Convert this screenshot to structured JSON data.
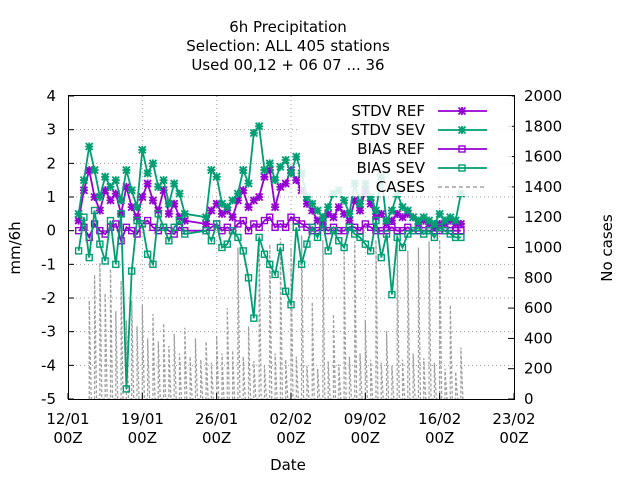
{
  "chart_data": {
    "type": "line",
    "title": [
      "6h Precipitation",
      "Selection: ALL    405 stations",
      "Used  00,12  + 06 07 ... 36"
    ],
    "xlabel": "Date",
    "ylabel": "mm/6h",
    "y2label": "No cases",
    "xlim": [
      0,
      42
    ],
    "ylim": [
      -5,
      4
    ],
    "y2lim": [
      0,
      2000
    ],
    "x_ticks": [
      {
        "value": 0,
        "line1": "12/01",
        "line2": "00Z"
      },
      {
        "value": 7,
        "line1": "19/01",
        "line2": "00Z"
      },
      {
        "value": 14,
        "line1": "26/01",
        "line2": "00Z"
      },
      {
        "value": 21,
        "line1": "02/02",
        "line2": "00Z"
      },
      {
        "value": 28,
        "line1": "09/02",
        "line2": "00Z"
      },
      {
        "value": 35,
        "line1": "16/02",
        "line2": "00Z"
      },
      {
        "value": 42,
        "line1": "23/02",
        "line2": "00Z"
      }
    ],
    "y_ticks": [
      "-5",
      "-4",
      "-3",
      "-2",
      "-1",
      "0",
      "1",
      "2",
      "3",
      "4"
    ],
    "y2_ticks": [
      "0",
      "200",
      "400",
      "600",
      "800",
      "1000",
      "1200",
      "1400",
      "1600",
      "1800",
      "2000"
    ],
    "grid": true,
    "legend_position": "top-right",
    "series": [
      {
        "name": "STDV REF",
        "color": "#9400d3",
        "marker": "x-star",
        "axis": "y1",
        "x": [
          1.0,
          1.5,
          2.0,
          2.5,
          3.0,
          3.5,
          4.0,
          4.5,
          5.0,
          5.5,
          6.0,
          6.5,
          7.0,
          7.5,
          8.0,
          8.5,
          9.0,
          9.5,
          10.0,
          10.5,
          11.0,
          13.0,
          13.5,
          14.0,
          14.5,
          15.0,
          15.5,
          16.0,
          16.5,
          17.0,
          17.5,
          18.0,
          18.5,
          19.0,
          19.5,
          20.0,
          20.5,
          21.0,
          21.5,
          22.0,
          22.5,
          23.0,
          23.5,
          24.0,
          24.5,
          25.0,
          25.5,
          26.0,
          26.5,
          27.0,
          27.5,
          28.0,
          28.5,
          29.0,
          29.5,
          30.0,
          30.5,
          31.0,
          31.5,
          32.0,
          32.5,
          33.0,
          33.5,
          34.0,
          34.5,
          35.0,
          35.5,
          36.0,
          36.5,
          37.0
        ],
        "y": [
          0.3,
          1.2,
          1.8,
          1.0,
          0.6,
          1.2,
          0.9,
          1.1,
          0.5,
          1.3,
          0.7,
          0.4,
          1.0,
          1.4,
          0.9,
          0.6,
          1.2,
          0.5,
          0.8,
          0.4,
          0.3,
          0.2,
          0.6,
          0.8,
          0.5,
          0.6,
          0.4,
          0.9,
          1.2,
          0.7,
          0.9,
          1.0,
          1.6,
          1.8,
          0.7,
          1.3,
          1.4,
          1.8,
          1.5,
          1.2,
          0.8,
          0.6,
          0.3,
          0.2,
          0.5,
          0.4,
          0.7,
          0.5,
          0.3,
          0.9,
          0.6,
          1.2,
          0.8,
          0.4,
          0.5,
          0.2,
          0.3,
          0.5,
          0.4,
          0.5,
          0.4,
          0.2,
          0.3,
          0.2,
          0.1,
          0.2,
          0.2,
          0.3,
          0.2,
          0.2
        ]
      },
      {
        "name": "STDV SEV",
        "color": "#009e73",
        "marker": "x-star",
        "axis": "y1",
        "x": [
          1.0,
          1.5,
          2.0,
          2.5,
          3.0,
          3.5,
          4.0,
          4.5,
          5.0,
          5.5,
          6.0,
          6.5,
          7.0,
          7.5,
          8.0,
          8.5,
          9.0,
          9.5,
          10.0,
          10.5,
          11.0,
          13.0,
          13.5,
          14.0,
          14.5,
          15.0,
          15.5,
          16.0,
          16.5,
          17.0,
          17.5,
          18.0,
          18.5,
          19.0,
          19.5,
          20.0,
          20.5,
          21.0,
          21.5,
          22.0,
          22.5,
          23.0,
          23.5,
          24.0,
          24.5,
          25.0,
          25.5,
          26.0,
          26.5,
          27.0,
          27.5,
          28.0,
          28.5,
          29.0,
          29.5,
          30.0,
          30.5,
          31.0,
          31.5,
          32.0,
          32.5,
          33.0,
          33.5,
          34.0,
          34.5,
          35.0,
          35.5,
          36.0,
          36.5,
          37.0
        ],
        "y": [
          0.5,
          1.5,
          2.5,
          1.8,
          1.0,
          1.6,
          1.3,
          1.5,
          0.9,
          1.8,
          1.2,
          0.7,
          2.4,
          1.7,
          2.0,
          1.3,
          1.5,
          0.8,
          1.4,
          1.1,
          0.5,
          0.4,
          1.8,
          1.6,
          0.8,
          0.7,
          0.9,
          1.1,
          1.8,
          1.4,
          2.9,
          3.1,
          1.8,
          2.0,
          1.5,
          1.9,
          2.1,
          1.7,
          2.2,
          1.7,
          1.0,
          0.8,
          0.6,
          0.4,
          0.7,
          1.1,
          1.2,
          0.9,
          0.5,
          1.4,
          0.8,
          1.4,
          1.0,
          0.6,
          1.6,
          0.3,
          0.6,
          1.1,
          0.7,
          0.6,
          0.4,
          0.3,
          0.4,
          0.3,
          0.2,
          0.5,
          0.3,
          0.4,
          0.3,
          1.1
        ]
      },
      {
        "name": "BIAS REF",
        "color": "#9400d3",
        "marker": "open-square",
        "axis": "y1",
        "x": [
          1.0,
          1.5,
          2.0,
          2.5,
          3.0,
          3.5,
          4.0,
          4.5,
          5.0,
          5.5,
          6.0,
          6.5,
          7.0,
          7.5,
          8.0,
          8.5,
          9.0,
          9.5,
          10.0,
          10.5,
          11.0,
          13.0,
          13.5,
          14.0,
          14.5,
          15.0,
          15.5,
          16.0,
          16.5,
          17.0,
          17.5,
          18.0,
          18.5,
          19.0,
          19.5,
          20.0,
          20.5,
          21.0,
          21.5,
          22.0,
          22.5,
          23.0,
          23.5,
          24.0,
          24.5,
          25.0,
          25.5,
          26.0,
          26.5,
          27.0,
          27.5,
          28.0,
          28.5,
          29.0,
          29.5,
          30.0,
          30.5,
          31.0,
          31.5,
          32.0,
          32.5,
          33.0,
          33.5,
          34.0,
          34.5,
          35.0,
          35.5,
          36.0,
          36.5,
          37.0
        ],
        "y": [
          0.0,
          0.1,
          -0.2,
          0.2,
          0.0,
          -0.1,
          0.1,
          0.2,
          -0.3,
          0.1,
          0.0,
          -0.1,
          0.2,
          0.3,
          0.1,
          0.0,
          0.1,
          0.0,
          -0.1,
          0.1,
          0.0,
          0.0,
          0.1,
          0.2,
          0.0,
          0.1,
          0.0,
          0.2,
          0.3,
          0.0,
          0.2,
          0.1,
          0.3,
          0.4,
          0.1,
          0.2,
          0.1,
          0.4,
          0.3,
          0.2,
          0.1,
          0.0,
          0.0,
          0.1,
          0.0,
          0.1,
          0.0,
          0.0,
          0.1,
          0.1,
          0.0,
          0.2,
          0.1,
          0.0,
          0.0,
          0.0,
          0.1,
          0.0,
          0.0,
          0.1,
          0.0,
          0.0,
          0.0,
          0.0,
          0.0,
          0.0,
          0.0,
          0.0,
          0.0,
          0.0
        ]
      },
      {
        "name": "BIAS SEV",
        "color": "#009e73",
        "marker": "open-square",
        "axis": "y1",
        "x": [
          1.0,
          1.5,
          2.0,
          2.5,
          3.0,
          3.5,
          4.0,
          4.5,
          5.0,
          5.5,
          6.0,
          6.5,
          7.0,
          7.5,
          8.0,
          8.5,
          9.0,
          9.5,
          10.0,
          10.5,
          11.0,
          13.0,
          13.5,
          14.0,
          14.5,
          15.0,
          15.5,
          16.0,
          16.5,
          17.0,
          17.5,
          18.0,
          18.5,
          19.0,
          19.5,
          20.0,
          20.5,
          21.0,
          21.5,
          22.0,
          22.5,
          23.0,
          23.5,
          24.0,
          24.5,
          25.0,
          25.5,
          26.0,
          26.5,
          27.0,
          27.5,
          28.0,
          28.5,
          29.0,
          29.5,
          30.0,
          30.5,
          31.0,
          31.5,
          32.0,
          32.5,
          33.0,
          33.5,
          34.0,
          34.5,
          35.0,
          35.5,
          36.0,
          36.5,
          37.0
        ],
        "y": [
          -0.6,
          0.4,
          -0.8,
          0.6,
          -0.4,
          -0.9,
          0.3,
          -1.0,
          0.5,
          -4.7,
          -1.2,
          0.3,
          0.2,
          -0.7,
          -1.0,
          0.5,
          0.1,
          -0.3,
          0.1,
          0.3,
          -0.1,
          0.0,
          -0.3,
          0.2,
          -0.5,
          -0.4,
          0.0,
          -0.2,
          -0.6,
          -1.4,
          -2.6,
          -0.2,
          -0.7,
          -1.0,
          -1.3,
          -0.5,
          -1.8,
          -2.2,
          0.1,
          -1.0,
          -0.4,
          0.1,
          -0.2,
          0.2,
          -0.6,
          0.0,
          -0.3,
          -0.5,
          0.1,
          -0.1,
          -0.2,
          -0.4,
          -0.6,
          0.3,
          -0.8,
          -0.1,
          -1.9,
          -0.2,
          -0.5,
          -0.1,
          0.0,
          0.1,
          -0.1,
          0.0,
          -0.2,
          0.1,
          0.0,
          -0.1,
          -0.2,
          -0.2
        ]
      },
      {
        "name": "CASES",
        "color": "#a0a0a0",
        "style": "dashed",
        "axis": "y2",
        "x": [
          2.0,
          2.5,
          3.0,
          3.5,
          4.0,
          4.5,
          5.0,
          5.5,
          6.0,
          6.5,
          7.0,
          7.5,
          8.0,
          8.5,
          9.0,
          9.5,
          10.0,
          10.5,
          11.0,
          11.5,
          12.0,
          12.5,
          13.0,
          13.5,
          14.0,
          14.5,
          15.0,
          15.5,
          16.0,
          16.5,
          17.0,
          17.5,
          18.0,
          18.5,
          19.0,
          19.5,
          20.0,
          20.5,
          21.0,
          21.5,
          22.0,
          22.5,
          23.0,
          23.5,
          24.0,
          24.5,
          25.0,
          25.5,
          26.0,
          26.5,
          27.0,
          27.5,
          28.0,
          28.5,
          29.0,
          29.5,
          30.0,
          30.5,
          31.0,
          31.5,
          32.0,
          32.5,
          33.0,
          33.5,
          34.0,
          34.5,
          35.0,
          35.5,
          36.0,
          36.5,
          37.0
        ],
        "y": [
          650,
          820,
          900,
          700,
          860,
          580,
          780,
          520,
          650,
          480,
          620,
          400,
          560,
          380,
          500,
          350,
          430,
          300,
          470,
          280,
          400,
          260,
          380,
          240,
          420,
          300,
          600,
          320,
          1000,
          280,
          480,
          250,
          1080,
          220,
          1020,
          300,
          1060,
          260,
          1000,
          280,
          1080,
          220,
          640,
          200,
          1050,
          250,
          560,
          230,
          980,
          280,
          1040,
          300,
          520,
          260,
          1050,
          240,
          450,
          220,
          1080,
          260,
          980,
          300,
          1000,
          270,
          1040,
          240,
          1050,
          200,
          620,
          180,
          340
        ]
      }
    ]
  }
}
